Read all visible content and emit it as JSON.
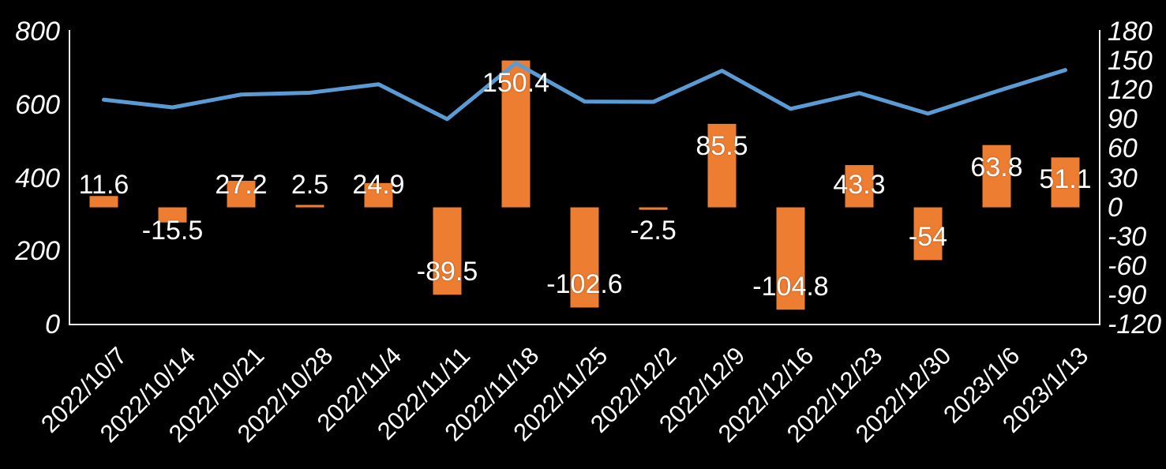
{
  "chart_data": {
    "type": "combo-bar-line",
    "title": "",
    "legend": "none",
    "background": "#000000",
    "text_color": "#FFFFFF",
    "axis_line_color": "#EDEDED",
    "categories": [
      "2022/10/7",
      "2022/10/14",
      "2022/10/21",
      "2022/10/28",
      "2022/11/4",
      "2022/11/11",
      "2022/11/18",
      "2022/11/25",
      "2022/12/2",
      "2022/12/9",
      "2022/12/16",
      "2022/12/23",
      "2022/12/30",
      "2023/1/6",
      "2023/1/13"
    ],
    "series": [
      {
        "name": "weekly-change-bars",
        "type": "bar",
        "axis": "right",
        "color": "#ED7D31",
        "values": [
          11.6,
          -15.5,
          27.2,
          2.5,
          24.9,
          -89.5,
          150.4,
          -102.6,
          -2.5,
          85.5,
          -104.8,
          43.3,
          -54,
          63.8,
          51.1
        ],
        "labels": [
          "11.6",
          "-15.5",
          "27.2",
          "2.5",
          "24.9",
          "-89.5",
          "150.4",
          "-102.6",
          "-2.5",
          "85.5",
          "-104.8",
          "43.3",
          "-54",
          "63.8",
          "51.1"
        ]
      },
      {
        "name": "level-line",
        "type": "line",
        "axis": "left",
        "color": "#5B9BD5",
        "values": [
          614,
          593,
          628,
          633,
          656,
          561,
          714,
          609,
          608,
          693,
          589,
          632,
          576,
          637,
          695
        ]
      }
    ],
    "left_axis": {
      "min": 0,
      "max": 800,
      "ticks": [
        800,
        600,
        400,
        200,
        0
      ]
    },
    "right_axis": {
      "min": -120,
      "max": 180,
      "ticks": [
        180,
        150,
        120,
        90,
        60,
        30,
        0,
        -30,
        -60,
        -90,
        -120
      ]
    }
  }
}
